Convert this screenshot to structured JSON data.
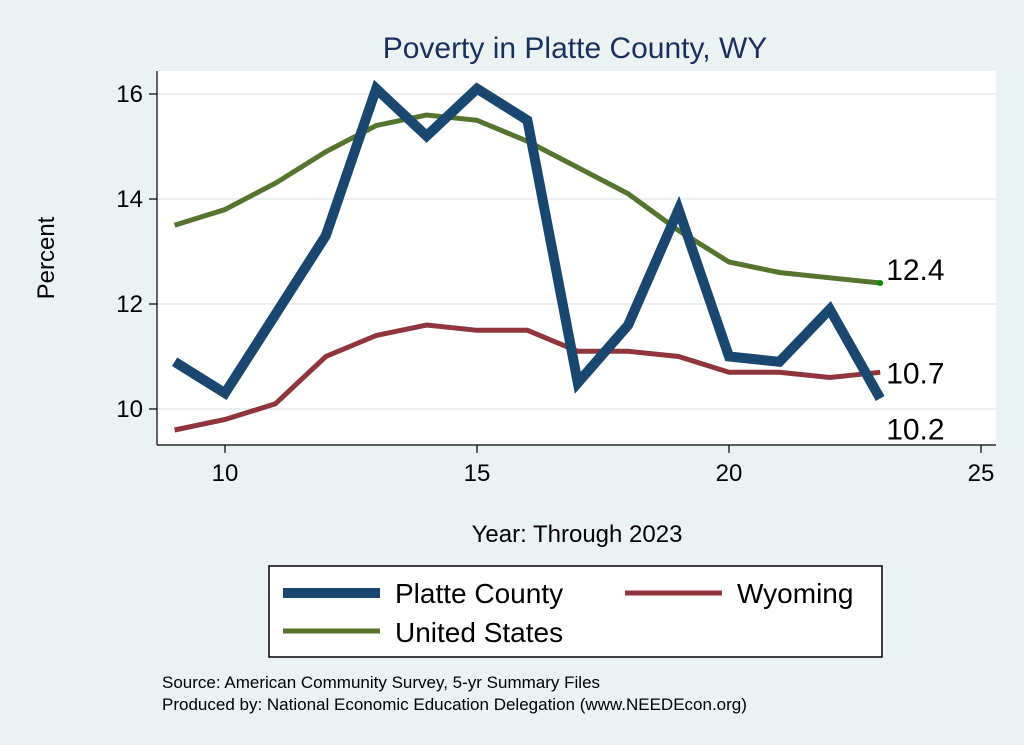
{
  "chart_data": {
    "type": "line",
    "title": "Poverty in Platte County, WY",
    "xlabel": "Year: Through 2023",
    "ylabel": "Percent",
    "xlim": [
      9,
      25
    ],
    "ylim": [
      9.3,
      16.5
    ],
    "xticks": [
      10,
      15,
      20,
      25
    ],
    "yticks": [
      10,
      12,
      14,
      16
    ],
    "grid": "horizontal",
    "legend_position": "bottom",
    "x": [
      9,
      10,
      11,
      12,
      13,
      14,
      15,
      16,
      17,
      18,
      19,
      20,
      21,
      22,
      23
    ],
    "series": [
      {
        "name": "Platte County",
        "color": "#1a476f",
        "values": [
          10.9,
          10.3,
          11.8,
          13.3,
          16.1,
          15.2,
          16.1,
          15.5,
          10.5,
          11.6,
          13.8,
          11.0,
          10.9,
          11.9,
          10.2
        ],
        "end_label": "10.2"
      },
      {
        "name": "Wyoming",
        "color": "#90353b",
        "values": [
          9.6,
          9.8,
          10.1,
          11.0,
          11.4,
          11.6,
          11.5,
          11.5,
          11.1,
          11.1,
          11.0,
          10.7,
          10.7,
          10.6,
          10.7
        ],
        "end_label": "10.7"
      },
      {
        "name": "United States",
        "color": "#55752f",
        "values": [
          13.5,
          13.8,
          14.3,
          14.9,
          15.4,
          15.6,
          15.5,
          15.1,
          14.6,
          14.1,
          13.4,
          12.8,
          12.6,
          12.5,
          12.4
        ],
        "end_label": "12.4"
      }
    ],
    "note": [
      "Source: American Community Survey, 5-yr Summary Files",
      "Produced by: National Economic Education Delegation (www.NEEDEcon.org)"
    ]
  }
}
